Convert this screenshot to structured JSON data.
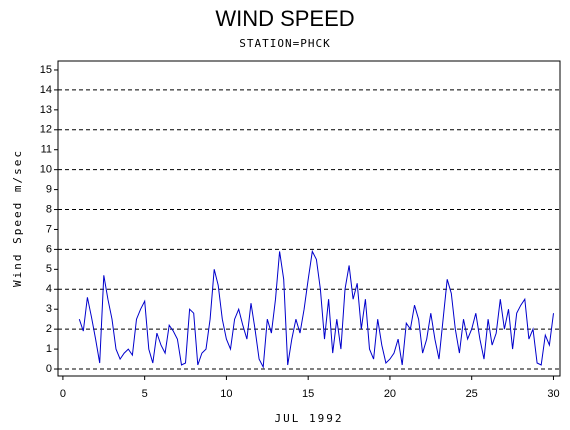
{
  "chart_data": {
    "type": "line",
    "title": "WIND SPEED",
    "subtitle": "STATION=PHCK",
    "y_label": "Wind Speed m/sec",
    "x_label": "JUL 1992",
    "xlim": [
      -0.3,
      30.4
    ],
    "xticks": [
      0,
      5,
      10,
      15,
      20,
      25,
      30
    ],
    "ylim": [
      -0.35,
      15.45
    ],
    "yticks": [
      0,
      1,
      2,
      3,
      4,
      5,
      6,
      7,
      8,
      9,
      10,
      11,
      12,
      13,
      14,
      15
    ],
    "ygrid": [
      0,
      2,
      4,
      6,
      8,
      10,
      12,
      14
    ],
    "series": [
      {
        "color": "#0000cc",
        "x": [
          1,
          1.25,
          1.5,
          1.75,
          2,
          2.25,
          2.5,
          2.75,
          3,
          3.25,
          3.5,
          3.75,
          4,
          4.25,
          4.5,
          4.75,
          5,
          5.25,
          5.5,
          5.75,
          6,
          6.25,
          6.5,
          6.75,
          7,
          7.25,
          7.5,
          7.75,
          8,
          8.25,
          8.5,
          8.75,
          9,
          9.25,
          9.5,
          9.75,
          10,
          10.25,
          10.5,
          10.75,
          11,
          11.25,
          11.5,
          11.75,
          12,
          12.25,
          12.5,
          12.75,
          13,
          13.25,
          13.5,
          13.75,
          14,
          14.25,
          14.5,
          14.75,
          15,
          15.25,
          15.5,
          15.75,
          16,
          16.25,
          16.5,
          16.75,
          17,
          17.25,
          17.5,
          17.75,
          18,
          18.25,
          18.5,
          18.75,
          19,
          19.25,
          19.5,
          19.75,
          20,
          20.25,
          20.5,
          20.75,
          21,
          21.25,
          21.5,
          21.75,
          22,
          22.25,
          22.5,
          22.75,
          23,
          23.25,
          23.5,
          23.75,
          24,
          24.25,
          24.5,
          24.75,
          25,
          25.25,
          25.5,
          25.75,
          26,
          26.25,
          26.5,
          26.75,
          27,
          27.25,
          27.5,
          27.75,
          28,
          28.25,
          28.5,
          28.75,
          29,
          29.25,
          29.5,
          29.75,
          30
        ],
        "values": [
          2.5,
          1.9,
          3.6,
          2.6,
          1.5,
          0.3,
          4.7,
          3.5,
          2.5,
          1.0,
          0.5,
          0.8,
          1.0,
          0.7,
          2.5,
          3.0,
          3.4,
          1.0,
          0.3,
          1.8,
          1.2,
          0.8,
          2.2,
          1.9,
          1.5,
          0.2,
          0.3,
          3.0,
          2.8,
          0.2,
          0.8,
          1.0,
          2.5,
          5.0,
          4.2,
          2.5,
          1.5,
          1.0,
          2.5,
          3.0,
          2.2,
          1.5,
          3.3,
          2.0,
          0.5,
          0.1,
          2.5,
          1.8,
          3.5,
          5.9,
          4.5,
          0.2,
          1.5,
          2.5,
          1.8,
          3.0,
          4.5,
          5.9,
          5.5,
          4.0,
          1.5,
          3.5,
          0.8,
          2.5,
          1.0,
          4.0,
          5.2,
          3.5,
          4.3,
          2.0,
          3.5,
          1.0,
          0.5,
          2.5,
          1.2,
          0.3,
          0.5,
          0.8,
          1.5,
          0.2,
          2.3,
          2.0,
          3.2,
          2.5,
          0.8,
          1.5,
          2.8,
          1.5,
          0.5,
          2.5,
          4.5,
          3.8,
          2.0,
          0.8,
          2.5,
          1.5,
          2.0,
          2.8,
          1.5,
          0.5,
          2.5,
          1.2,
          1.8,
          3.5,
          2.0,
          3.0,
          1.0,
          2.8,
          3.2,
          3.5,
          1.5,
          2.0,
          0.3,
          0.2,
          1.7,
          1.2,
          2.8
        ]
      }
    ]
  }
}
